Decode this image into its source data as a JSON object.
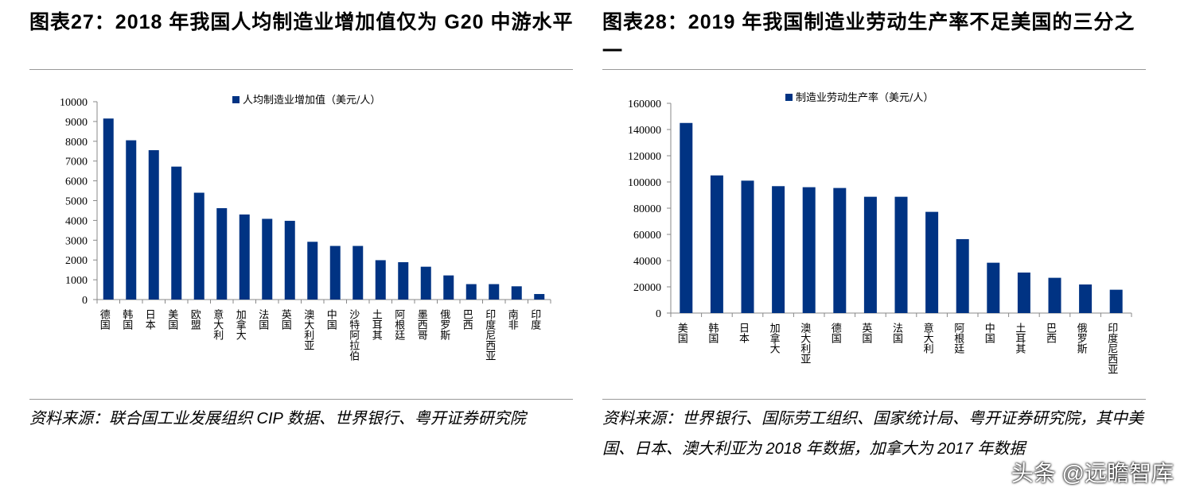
{
  "chart_data": [
    {
      "type": "bar",
      "title": "图表27：2018 年我国人均制造业增加值仅为 G20 中游水平",
      "legend": "人均制造业增加值（美元/人）",
      "legend_position": "top-center",
      "ylim": [
        0,
        10000
      ],
      "yticks": [
        0,
        1000,
        2000,
        3000,
        4000,
        5000,
        6000,
        7000,
        8000,
        9000,
        10000
      ],
      "color": "#003383",
      "categories": [
        "德国",
        "韩国",
        "日本",
        "美国",
        "欧盟",
        "意大利",
        "加拿大",
        "法国",
        "英国",
        "澳大利亚",
        "中国",
        "沙特阿拉伯",
        "土耳其",
        "阿根廷",
        "墨西哥",
        "俄罗斯",
        "巴西",
        "印度尼西亚",
        "南非",
        "印度"
      ],
      "values": [
        9150,
        8050,
        7550,
        6720,
        5400,
        4620,
        4300,
        4080,
        3980,
        2920,
        2710,
        2710,
        1990,
        1890,
        1660,
        1220,
        780,
        780,
        670,
        280
      ],
      "source": "资料来源：联合国工业发展组织 CIP 数据、世界银行、粤开证券研究院"
    },
    {
      "type": "bar",
      "title": "图表28：2019 年我国制造业劳动生产率不足美国的三分之一",
      "legend": "制造业劳动生产率（美元/人）",
      "legend_position": "top-center",
      "ylim": [
        0,
        160000
      ],
      "yticks": [
        0,
        20000,
        40000,
        60000,
        80000,
        100000,
        120000,
        140000,
        160000
      ],
      "color": "#003383",
      "categories": [
        "美国",
        "韩国",
        "日本",
        "加拿大",
        "澳大利亚",
        "德国",
        "英国",
        "法国",
        "意大利",
        "阿根廷",
        "中国",
        "土耳其",
        "巴西",
        "俄罗斯",
        "印度尼西亚"
      ],
      "values": [
        145000,
        105000,
        101000,
        96800,
        96000,
        95400,
        88700,
        88700,
        77200,
        56400,
        38400,
        30900,
        26900,
        21800,
        17800
      ],
      "source": "资料来源：世界银行、国际劳工组织、国家统计局、粤开证券研究院，其中美国、日本、澳大利亚为 2018 年数据，加拿大为 2017 年数据"
    }
  ],
  "watermark": "头条 @远瞻智库"
}
